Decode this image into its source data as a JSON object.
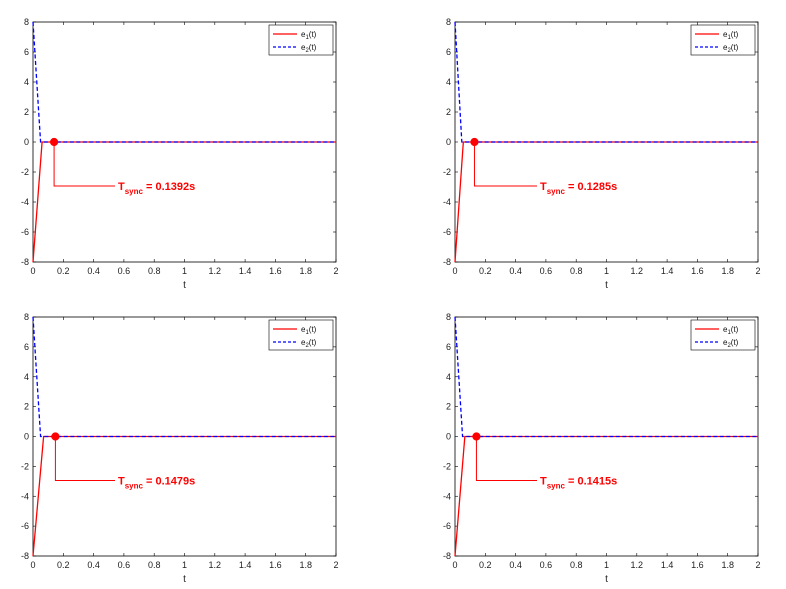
{
  "colors": {
    "e1": "#ff0000",
    "e2": "#0000ff",
    "annotation": "#ff0000",
    "axis": "#000000"
  },
  "chart_data": [
    {
      "type": "line",
      "xlabel": "t",
      "xlim": [
        0,
        2
      ],
      "ylim": [
        -8,
        8
      ],
      "xticks": [
        "0",
        "0.2",
        "0.4",
        "0.6",
        "0.8",
        "1",
        "1.2",
        "1.4",
        "1.6",
        "1.8",
        "2"
      ],
      "yticks": [
        "-8",
        "-6",
        "-4",
        "-2",
        "0",
        "2",
        "4",
        "6",
        "8"
      ],
      "legend_position": "top-right",
      "series": [
        {
          "name": "e1(t)",
          "name_main": "e",
          "name_sub": "1",
          "name_tail": "(t)",
          "style": "solid",
          "x": [
            0,
            0.06,
            0.1392,
            2
          ],
          "y": [
            -8,
            0,
            0,
            0
          ]
        },
        {
          "name": "e2(t)",
          "name_main": "e",
          "name_sub": "2",
          "name_tail": "(t)",
          "style": "dashed",
          "x": [
            0,
            0.05,
            0.1392,
            2
          ],
          "y": [
            8,
            0,
            0,
            0
          ]
        }
      ],
      "marker": {
        "x": 0.1392,
        "y": 0
      },
      "annotation": {
        "main": "T",
        "sub": "sync",
        "value": " = 0.1392s"
      }
    },
    {
      "type": "line",
      "xlabel": "t",
      "xlim": [
        0,
        2
      ],
      "ylim": [
        -8,
        8
      ],
      "xticks": [
        "0",
        "0.2",
        "0.4",
        "0.6",
        "0.8",
        "1",
        "1.2",
        "1.4",
        "1.6",
        "1.8",
        "2"
      ],
      "yticks": [
        "-8",
        "-6",
        "-4",
        "-2",
        "0",
        "2",
        "4",
        "6",
        "8"
      ],
      "legend_position": "top-right",
      "series": [
        {
          "name": "e1(t)",
          "name_main": "e",
          "name_sub": "1",
          "name_tail": "(t)",
          "style": "solid",
          "x": [
            0,
            0.055,
            0.1285,
            2
          ],
          "y": [
            -8,
            0,
            0,
            0
          ]
        },
        {
          "name": "e2(t)",
          "name_main": "e",
          "name_sub": "2",
          "name_tail": "(t)",
          "style": "dashed",
          "x": [
            0,
            0.045,
            0.1285,
            2
          ],
          "y": [
            8,
            0,
            0,
            0
          ]
        }
      ],
      "marker": {
        "x": 0.1285,
        "y": 0
      },
      "annotation": {
        "main": "T",
        "sub": "sync",
        "value": " = 0.1285s"
      }
    },
    {
      "type": "line",
      "xlabel": "t",
      "xlim": [
        0,
        2
      ],
      "ylim": [
        -8,
        8
      ],
      "xticks": [
        "0",
        "0.2",
        "0.4",
        "0.6",
        "0.8",
        "1",
        "1.2",
        "1.4",
        "1.6",
        "1.8",
        "2"
      ],
      "yticks": [
        "-8",
        "-6",
        "-4",
        "-2",
        "0",
        "2",
        "4",
        "6",
        "8"
      ],
      "legend_position": "top-right",
      "series": [
        {
          "name": "e1(t)",
          "name_main": "e",
          "name_sub": "1",
          "name_tail": "(t)",
          "style": "solid",
          "x": [
            0,
            0.07,
            0.1479,
            2
          ],
          "y": [
            -8,
            0,
            0,
            0
          ]
        },
        {
          "name": "e2(t)",
          "name_main": "e",
          "name_sub": "2",
          "name_tail": "(t)",
          "style": "dashed",
          "x": [
            0,
            0.05,
            0.1479,
            2
          ],
          "y": [
            8,
            0,
            0,
            0
          ]
        }
      ],
      "marker": {
        "x": 0.1479,
        "y": 0
      },
      "annotation": {
        "main": "T",
        "sub": "sync",
        "value": " = 0.1479s"
      }
    },
    {
      "type": "line",
      "xlabel": "t",
      "xlim": [
        0,
        2
      ],
      "ylim": [
        -8,
        8
      ],
      "xticks": [
        "0",
        "0.2",
        "0.4",
        "0.6",
        "0.8",
        "1",
        "1.2",
        "1.4",
        "1.6",
        "1.8",
        "2"
      ],
      "yticks": [
        "-8",
        "-6",
        "-4",
        "-2",
        "0",
        "2",
        "4",
        "6",
        "8"
      ],
      "legend_position": "top-right",
      "series": [
        {
          "name": "e1(t)",
          "name_main": "e",
          "name_sub": "1",
          "name_tail": "(t)",
          "style": "solid",
          "x": [
            0,
            0.065,
            0.1415,
            2
          ],
          "y": [
            -8,
            0,
            0,
            0
          ]
        },
        {
          "name": "e2(t)",
          "name_main": "e",
          "name_sub": "2",
          "name_tail": "(t)",
          "style": "dashed",
          "x": [
            0,
            0.05,
            0.1415,
            2
          ],
          "y": [
            8,
            0,
            0,
            0
          ]
        }
      ],
      "marker": {
        "x": 0.1415,
        "y": 0
      },
      "annotation": {
        "main": "T",
        "sub": "sync",
        "value": " = 0.1415s"
      }
    }
  ]
}
